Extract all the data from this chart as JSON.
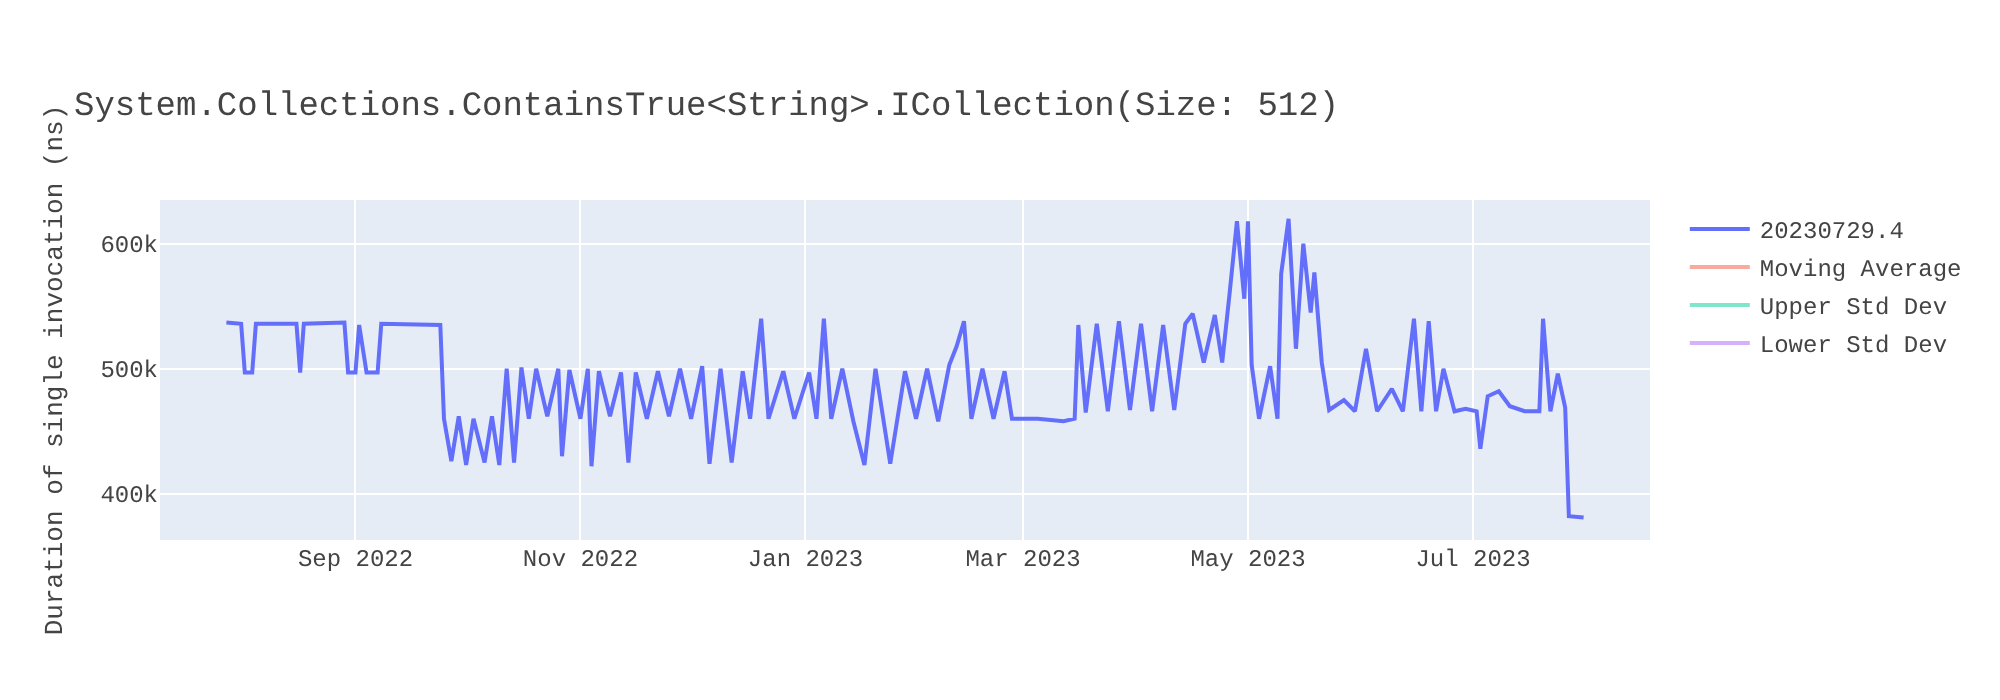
{
  "chart_data": {
    "type": "line",
    "title": "System.Collections.ContainsTrue<String>.ICollection(Size: 512)",
    "ylabel": "Duration of single invocation (ns)",
    "x": [
      "2022-07-28",
      "2022-08-01",
      "2022-08-02",
      "2022-08-04",
      "2022-08-05",
      "2022-08-16",
      "2022-08-17",
      "2022-08-18",
      "2022-08-29",
      "2022-08-30",
      "2022-09-01",
      "2022-09-02",
      "2022-09-04",
      "2022-09-07",
      "2022-09-08",
      "2022-09-24",
      "2022-09-25",
      "2022-09-27",
      "2022-09-29",
      "2022-10-01",
      "2022-10-03",
      "2022-10-06",
      "2022-10-08",
      "2022-10-10",
      "2022-10-12",
      "2022-10-14",
      "2022-10-16",
      "2022-10-18",
      "2022-10-20",
      "2022-10-23",
      "2022-10-26",
      "2022-10-27",
      "2022-10-29",
      "2022-11-01",
      "2022-11-03",
      "2022-11-04",
      "2022-11-06",
      "2022-11-09",
      "2022-11-12",
      "2022-11-14",
      "2022-11-16",
      "2022-11-19",
      "2022-11-22",
      "2022-11-25",
      "2022-11-28",
      "2022-12-01",
      "2022-12-04",
      "2022-12-06",
      "2022-12-09",
      "2022-12-12",
      "2022-12-15",
      "2022-12-17",
      "2022-12-20",
      "2022-12-22",
      "2022-12-26",
      "2022-12-29",
      "2023-01-02",
      "2023-01-04",
      "2023-01-06",
      "2023-01-08",
      "2023-01-11",
      "2023-01-14",
      "2023-01-17",
      "2023-01-20",
      "2023-01-24",
      "2023-01-28",
      "2023-01-31",
      "2023-02-03",
      "2023-02-06",
      "2023-02-09",
      "2023-02-11",
      "2023-02-13",
      "2023-02-15",
      "2023-02-18",
      "2023-02-21",
      "2023-02-24",
      "2023-02-26",
      "2023-03-05",
      "2023-03-12",
      "2023-03-15",
      "2023-03-16",
      "2023-03-18",
      "2023-03-21",
      "2023-03-24",
      "2023-03-27",
      "2023-03-30",
      "2023-04-02",
      "2023-04-05",
      "2023-04-08",
      "2023-04-11",
      "2023-04-14",
      "2023-04-16",
      "2023-04-19",
      "2023-04-22",
      "2023-04-24",
      "2023-04-26",
      "2023-04-28",
      "2023-04-30",
      "2023-05-01",
      "2023-05-02",
      "2023-05-04",
      "2023-05-07",
      "2023-05-09",
      "2023-05-10",
      "2023-05-12",
      "2023-05-14",
      "2023-05-16",
      "2023-05-18",
      "2023-05-19",
      "2023-05-21",
      "2023-05-23",
      "2023-05-27",
      "2023-05-30",
      "2023-06-02",
      "2023-06-05",
      "2023-06-09",
      "2023-06-12",
      "2023-06-15",
      "2023-06-17",
      "2023-06-19",
      "2023-06-21",
      "2023-06-23",
      "2023-06-26",
      "2023-06-29",
      "2023-07-02",
      "2023-07-03",
      "2023-07-05",
      "2023-07-08",
      "2023-07-11",
      "2023-07-15",
      "2023-07-19",
      "2023-07-20",
      "2023-07-22",
      "2023-07-24",
      "2023-07-26",
      "2023-07-27",
      "2023-07-31"
    ],
    "series": [
      {
        "name": "20230729.4",
        "color": "#636efa",
        "values": [
          537000,
          536000,
          497000,
          497000,
          536000,
          536000,
          497000,
          536000,
          537000,
          497000,
          497000,
          535000,
          497000,
          497000,
          536000,
          535000,
          460000,
          426000,
          462000,
          423000,
          460000,
          425000,
          462000,
          423000,
          500000,
          425000,
          501000,
          460000,
          500000,
          462000,
          500000,
          430000,
          499000,
          460000,
          500000,
          422000,
          498000,
          462000,
          497000,
          425000,
          497000,
          460000,
          498000,
          462000,
          500000,
          460000,
          502000,
          424000,
          500000,
          425000,
          498000,
          460000,
          540000,
          460000,
          498000,
          460000,
          497000,
          460000,
          540000,
          460000,
          500000,
          458000,
          423000,
          500000,
          424000,
          498000,
          460000,
          500000,
          458000,
          503000,
          518000,
          538000,
          460000,
          500000,
          460000,
          498000,
          460000,
          460000,
          458000,
          460000,
          535000,
          465000,
          536000,
          466000,
          538000,
          467000,
          536000,
          466000,
          535000,
          467000,
          536000,
          544000,
          505000,
          543000,
          505000,
          560000,
          618000,
          556000,
          618000,
          503000,
          460000,
          502000,
          460000,
          576000,
          620000,
          516000,
          600000,
          545000,
          577000,
          505000,
          467000,
          475000,
          466000,
          516000,
          466000,
          484000,
          466000,
          540000,
          466000,
          538000,
          466000,
          500000,
          466000,
          468000,
          466000,
          436000,
          478000,
          482000,
          470000,
          466000,
          466000,
          540000,
          466000,
          496000,
          469000,
          382000,
          381000
        ]
      },
      {
        "name": "Moving Average",
        "color": "#f7aa9d",
        "values": [
          null,
          null,
          null,
          null,
          null,
          null,
          null,
          null,
          null,
          null,
          null,
          null,
          null,
          null,
          null,
          null,
          null,
          null,
          null,
          null,
          null,
          null,
          null,
          null,
          null,
          null,
          null,
          null,
          null,
          null,
          null,
          null,
          null,
          null,
          null,
          null,
          null,
          null,
          null,
          null,
          null,
          null,
          null,
          null,
          null,
          null,
          null,
          null,
          null,
          null,
          null,
          null,
          null,
          null,
          null,
          null,
          null,
          null,
          null,
          null,
          null,
          null,
          null,
          null,
          null,
          null,
          null,
          null,
          null,
          null,
          null,
          null,
          null,
          null,
          null,
          null,
          null,
          null,
          null,
          null,
          null,
          null,
          null,
          null,
          null,
          null,
          null,
          null,
          null,
          null,
          null,
          null,
          null,
          null,
          null,
          null,
          null,
          null,
          null,
          null,
          null,
          null,
          null,
          null,
          null,
          null,
          null,
          null,
          null,
          null,
          null,
          null,
          null,
          null,
          null,
          null,
          null,
          null,
          null,
          null,
          null,
          null,
          null,
          null,
          null,
          null,
          null,
          null,
          null,
          null,
          null,
          null,
          null,
          null,
          null,
          null,
          null
        ]
      },
      {
        "name": "Upper Std Dev",
        "color": "#80e5cb",
        "values": [
          null,
          null,
          null,
          null,
          null,
          null,
          null,
          null,
          null,
          null,
          null,
          null,
          null,
          null,
          null,
          null,
          null,
          null,
          null,
          null,
          null,
          null,
          null,
          null,
          null,
          null,
          null,
          null,
          null,
          null,
          null,
          null,
          null,
          null,
          null,
          null,
          null,
          null,
          null,
          null,
          null,
          null,
          null,
          null,
          null,
          null,
          null,
          null,
          null,
          null,
          null,
          null,
          null,
          null,
          null,
          null,
          null,
          null,
          null,
          null,
          null,
          null,
          null,
          null,
          null,
          null,
          null,
          null,
          null,
          null,
          null,
          null,
          null,
          null,
          null,
          null,
          null,
          null,
          null,
          null,
          null,
          null,
          null,
          null,
          null,
          null,
          null,
          null,
          null,
          null,
          null,
          null,
          null,
          null,
          null,
          null,
          null,
          null,
          null,
          null,
          null,
          null,
          null,
          null,
          null,
          null,
          null,
          null,
          null,
          null,
          null,
          null,
          null,
          null,
          null,
          null,
          null,
          null,
          null,
          null,
          null,
          null,
          null,
          null,
          null,
          null,
          null,
          null,
          null,
          null,
          null,
          null,
          null,
          null,
          null,
          null,
          null
        ]
      },
      {
        "name": "Lower Std Dev",
        "color": "#d5b1fc",
        "values": [
          null,
          null,
          null,
          null,
          null,
          null,
          null,
          null,
          null,
          null,
          null,
          null,
          null,
          null,
          null,
          null,
          null,
          null,
          null,
          null,
          null,
          null,
          null,
          null,
          null,
          null,
          null,
          null,
          null,
          null,
          null,
          null,
          null,
          null,
          null,
          null,
          null,
          null,
          null,
          null,
          null,
          null,
          null,
          null,
          null,
          null,
          null,
          null,
          null,
          null,
          null,
          null,
          null,
          null,
          null,
          null,
          null,
          null,
          null,
          null,
          null,
          null,
          null,
          null,
          null,
          null,
          null,
          null,
          null,
          null,
          null,
          null,
          null,
          null,
          null,
          null,
          null,
          null,
          null,
          null,
          null,
          null,
          null,
          null,
          null,
          null,
          null,
          null,
          null,
          null,
          null,
          null,
          null,
          null,
          null,
          null,
          null,
          null,
          null,
          null,
          null,
          null,
          null,
          null,
          null,
          null,
          null,
          null,
          null,
          null,
          null,
          null,
          null,
          null,
          null,
          null,
          null,
          null,
          null,
          null,
          null,
          null,
          null,
          null,
          null,
          null,
          null,
          null,
          null,
          null,
          null,
          null,
          null,
          null,
          null,
          null,
          null
        ]
      }
    ],
    "xlim": [
      "2022-07-10",
      "2023-08-18"
    ],
    "xticks": [
      {
        "value": "2022-09-01",
        "label": "Sep 2022"
      },
      {
        "value": "2022-11-01",
        "label": "Nov 2022"
      },
      {
        "value": "2023-01-01",
        "label": "Jan 2023"
      },
      {
        "value": "2023-03-01",
        "label": "Mar 2023"
      },
      {
        "value": "2023-05-01",
        "label": "May 2023"
      },
      {
        "value": "2023-07-01",
        "label": "Jul 2023"
      }
    ],
    "ylim": [
      363000,
      635000
    ],
    "yticks": [
      {
        "value": 400000,
        "label": "400k"
      },
      {
        "value": 500000,
        "label": "500k"
      },
      {
        "value": 600000,
        "label": "600k"
      }
    ],
    "grid": true,
    "legend": "top right",
    "marker": "none",
    "line_style": "solid"
  }
}
